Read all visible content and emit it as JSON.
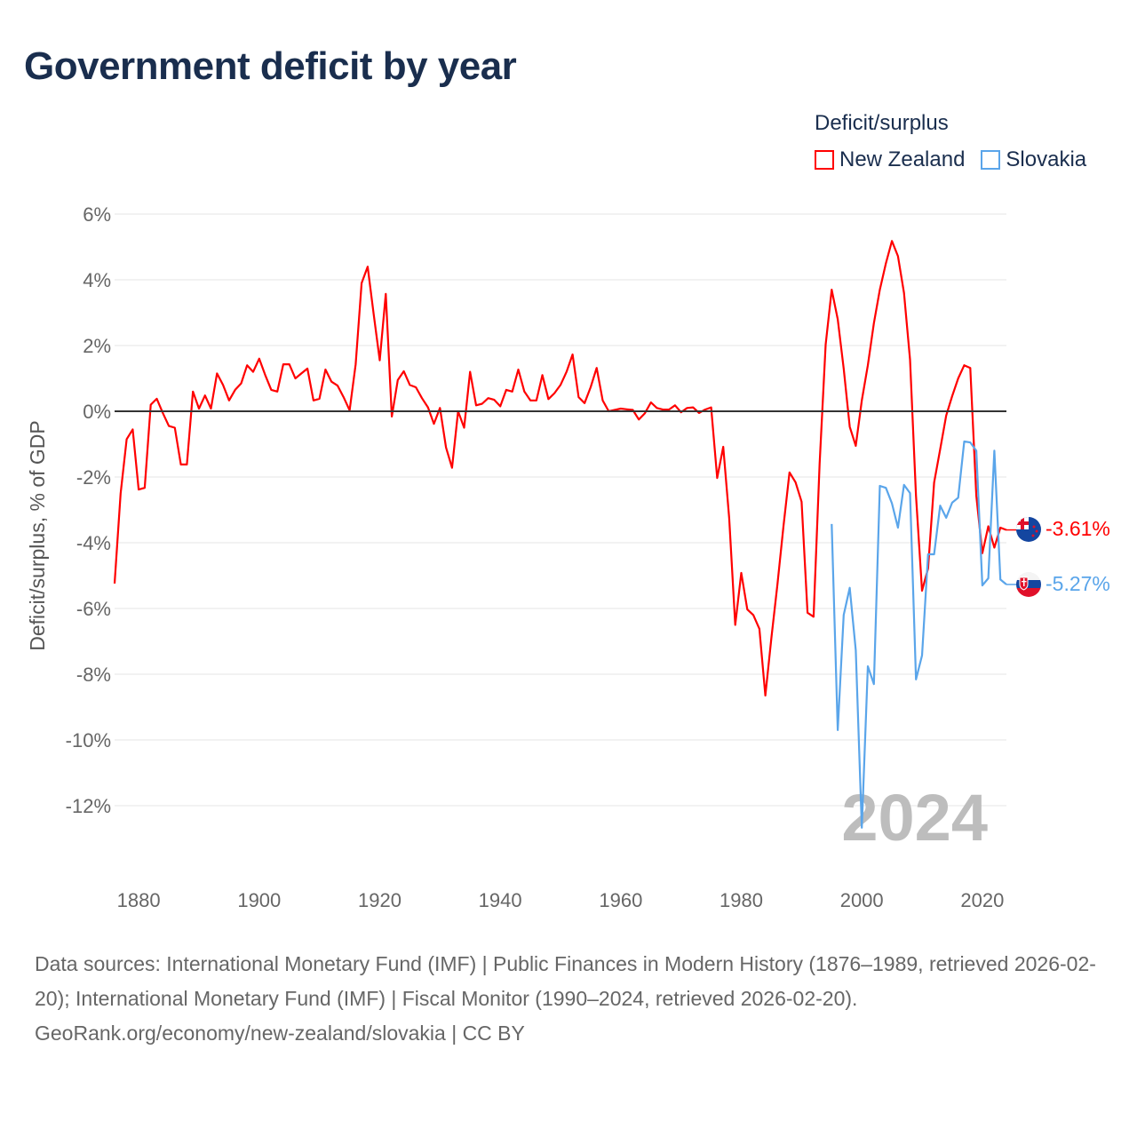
{
  "title": "Government deficit by year",
  "legend": {
    "title": "Deficit/surplus",
    "items": [
      {
        "label": "New Zealand",
        "color": "#ff0000"
      },
      {
        "label": "Slovakia",
        "color": "#5aa5ea"
      }
    ]
  },
  "watermark_year": "2024",
  "end_labels": {
    "nz": "-3.61%",
    "sk": "-5.27%"
  },
  "footer": {
    "sources": "Data sources: International Monetary Fund (IMF) | Public Finances in Modern History (1876–1989, retrieved 2026-02-20); International Monetary Fund (IMF) | Fiscal Monitor (1990–2024, retrieved 2026-02-20).",
    "credit": "GeoRank.org/economy/new-zealand/slovakia | CC BY"
  },
  "chart_data": {
    "type": "line",
    "title": "Government deficit by year",
    "xlabel": "",
    "ylabel": "Deficit/surplus, % of GDP",
    "xlim": [
      1876,
      2024
    ],
    "ylim": [
      -14,
      6
    ],
    "x_ticks": [
      "1880",
      "1900",
      "1920",
      "1940",
      "1960",
      "1980",
      "2000",
      "2020"
    ],
    "x_tick_values": [
      1880,
      1900,
      1920,
      1940,
      1960,
      1980,
      2000,
      2020
    ],
    "y_ticks": [
      "6%",
      "4%",
      "2%",
      "0%",
      "-2%",
      "-4%",
      "-6%",
      "-8%",
      "-10%",
      "-12%"
    ],
    "y_tick_values": [
      6,
      4,
      2,
      0,
      -2,
      -4,
      -6,
      -8,
      -10,
      -12
    ],
    "grid": true,
    "legend_placement": "top-right",
    "series": [
      {
        "name": "New Zealand",
        "color": "#ff0000",
        "start_year": 1876,
        "values": [
          -5.24,
          -2.5,
          -0.85,
          -0.55,
          -2.38,
          -2.33,
          0.2,
          0.38,
          -0.05,
          -0.45,
          -0.5,
          -1.62,
          -1.62,
          0.6,
          0.08,
          0.48,
          0.08,
          1.15,
          0.8,
          0.33,
          0.65,
          0.85,
          1.4,
          1.2,
          1.6,
          1.1,
          0.65,
          0.6,
          1.43,
          1.43,
          1.0,
          1.15,
          1.3,
          0.33,
          0.38,
          1.27,
          0.9,
          0.78,
          0.43,
          0.03,
          1.43,
          3.9,
          4.4,
          2.95,
          1.55,
          3.57,
          -0.16,
          0.95,
          1.22,
          0.8,
          0.73,
          0.4,
          0.12,
          -0.38,
          0.1,
          -1.1,
          -1.72,
          0.0,
          -0.5,
          1.2,
          0.18,
          0.23,
          0.4,
          0.35,
          0.15,
          0.65,
          0.6,
          1.27,
          0.6,
          0.33,
          0.33,
          1.1,
          0.37,
          0.55,
          0.8,
          1.2,
          1.73,
          0.43,
          0.25,
          0.73,
          1.32,
          0.33,
          0.0,
          0.04,
          0.08,
          0.06,
          0.04,
          -0.25,
          -0.06,
          0.27,
          0.1,
          0.05,
          0.05,
          0.18,
          -0.03,
          0.1,
          0.12,
          -0.05,
          0.05,
          0.12,
          -2.03,
          -1.08,
          -3.25,
          -6.5,
          -4.92,
          -6.03,
          -6.2,
          -6.62,
          -8.65,
          -6.9,
          -5.27,
          -3.5,
          -1.86,
          -2.16,
          -2.75,
          -6.13,
          -6.25,
          -1.6,
          2.03,
          3.7,
          2.8,
          1.3,
          -0.47,
          -1.05,
          0.33,
          1.4,
          2.68,
          3.7,
          4.5,
          5.18,
          4.72,
          3.6,
          1.57,
          -2.57,
          -5.46,
          -4.78,
          -2.17,
          -1.16,
          -0.13,
          0.46,
          1.0,
          1.4,
          1.32,
          -2.57,
          -4.32,
          -3.5,
          -4.15,
          -3.54,
          -3.61
        ]
      },
      {
        "name": "Slovakia",
        "color": "#5aa5ea",
        "start_year": 1995,
        "values": [
          -3.43,
          -9.7,
          -6.2,
          -5.37,
          -7.27,
          -12.67,
          -7.76,
          -8.3,
          -2.27,
          -2.33,
          -2.8,
          -3.54,
          -2.24,
          -2.49,
          -8.16,
          -7.43,
          -4.35,
          -4.35,
          -2.87,
          -3.24,
          -2.78,
          -2.63,
          -0.92,
          -0.95,
          -1.2,
          -5.3,
          -5.08,
          -1.2,
          -5.12,
          -5.27
        ]
      }
    ]
  }
}
